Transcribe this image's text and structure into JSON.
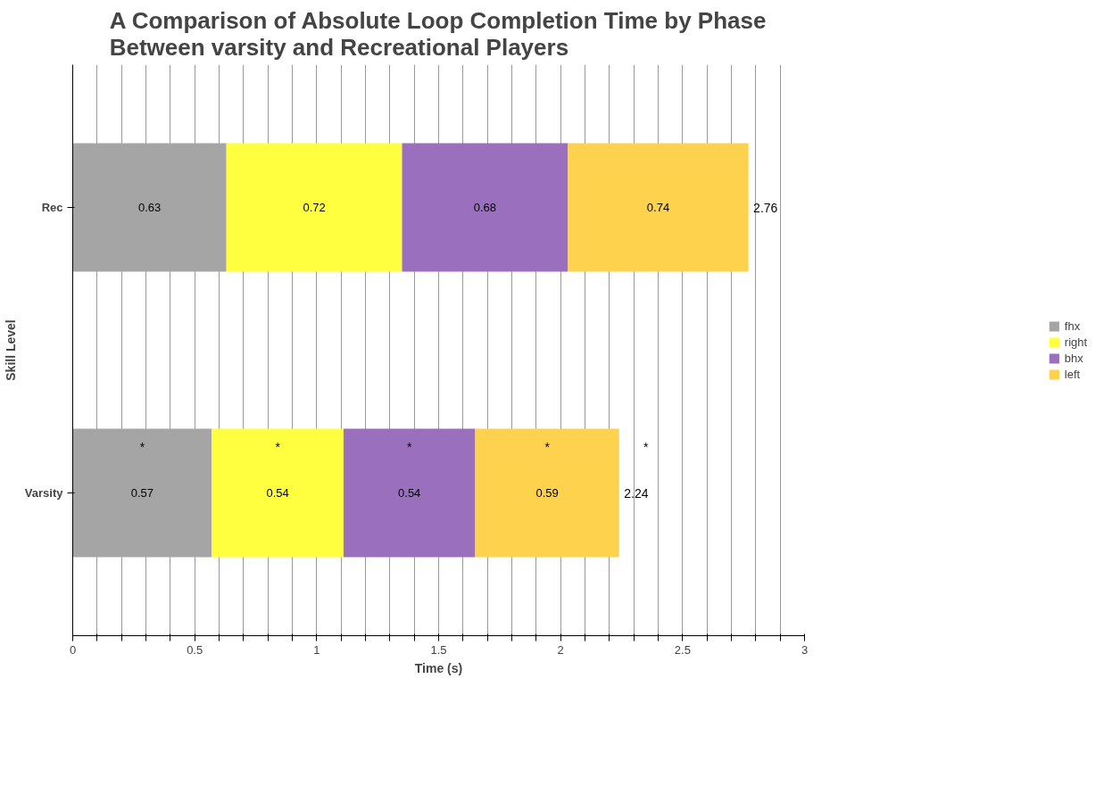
{
  "chart_data": {
    "type": "bar",
    "orientation": "horizontal",
    "stacked": true,
    "title": "A Comparison of Absolute Loop Completion Time by Phase Between varsity and Recreational Players",
    "xlabel": "Time (s)",
    "ylabel": "Skill Level",
    "categories": [
      "Rec",
      "Varsity"
    ],
    "series": [
      {
        "name": "fhx",
        "color": "#a5a5a5",
        "values": [
          0.63,
          0.57
        ]
      },
      {
        "name": "right",
        "color": "#ffff40",
        "values": [
          0.72,
          0.54
        ]
      },
      {
        "name": "bhx",
        "color": "#9a6fbd",
        "values": [
          0.68,
          0.54
        ]
      },
      {
        "name": "left",
        "color": "#ffd24d",
        "values": [
          0.74,
          0.59
        ]
      }
    ],
    "data_labels": true,
    "totals": [
      "2.76",
      "2.24"
    ],
    "annotations": [
      "*",
      "*",
      "*",
      "*",
      "*"
    ],
    "xlim": [
      0,
      3
    ],
    "xticks": [
      0,
      {
        "value": 0.1,
        "label": null
      },
      {
        "value": 0.2,
        "label": null
      },
      {
        "value": 0.3,
        "label": null
      },
      {
        "value": 0.4,
        "label": null
      },
      0.5,
      {
        "value": 0.6,
        "label": null
      },
      {
        "value": 0.7,
        "label": null
      },
      {
        "value": 0.8,
        "label": null
      },
      {
        "value": 0.9,
        "label": null
      },
      1,
      {
        "value": 1.1,
        "label": null
      },
      {
        "value": 1.2,
        "label": null
      },
      {
        "value": 1.3,
        "label": null
      },
      {
        "value": 1.4,
        "label": null
      },
      1.5,
      {
        "value": 1.6,
        "label": null
      },
      {
        "value": 1.7,
        "label": null
      },
      {
        "value": 1.8,
        "label": null
      },
      {
        "value": 1.9,
        "label": null
      },
      2,
      {
        "value": 2.1,
        "label": null
      },
      {
        "value": 2.2,
        "label": null
      },
      {
        "value": 2.3,
        "label": null
      },
      {
        "value": 2.4,
        "label": null
      },
      2.5,
      {
        "value": 2.6,
        "label": null
      },
      {
        "value": 2.7,
        "label": null
      },
      {
        "value": 2.8,
        "label": null
      },
      {
        "value": 2.9,
        "label": null
      },
      3
    ],
    "grid": "x",
    "legend": "right"
  }
}
